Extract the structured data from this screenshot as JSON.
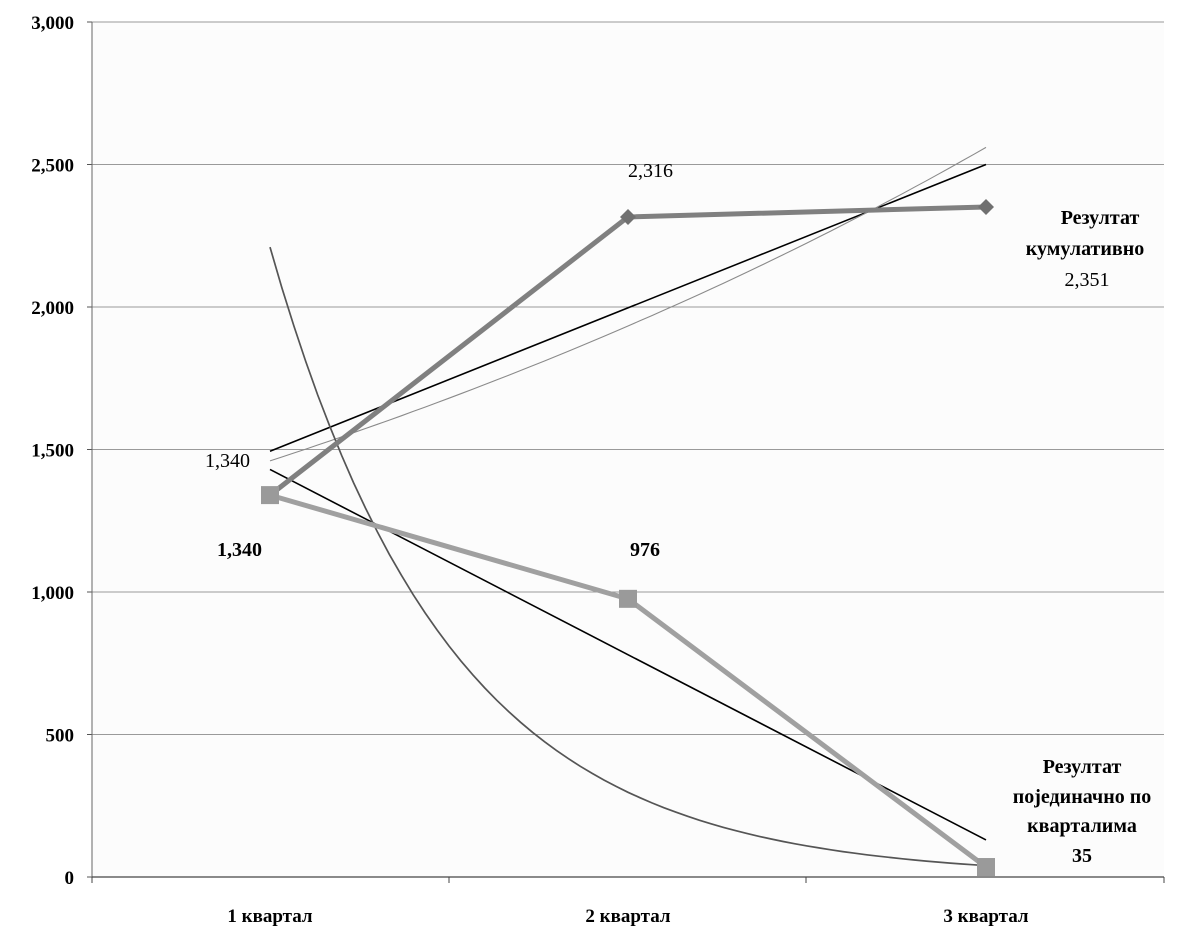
{
  "chart_data": {
    "type": "line",
    "categories": [
      "1 квартал",
      "2 квартал",
      "3 квартал"
    ],
    "ylim": [
      0,
      3000
    ],
    "yticks": [
      0,
      500,
      1000,
      1500,
      2000,
      2500,
      3000
    ],
    "ytick_labels": [
      "0",
      "500",
      "1,000",
      "1,500",
      "2,000",
      "2,500",
      "3,000"
    ],
    "grid": true,
    "series": [
      {
        "name_lines": [
          "Резултат",
          "кумулативно"
        ],
        "values": [
          1340,
          2316,
          2351
        ],
        "data_labels": [
          "1,340",
          "2,316",
          "2,351"
        ],
        "color": "#808080",
        "marker": "diamond"
      },
      {
        "name_lines": [
          "Резултат",
          "појединачно по",
          "кварталима"
        ],
        "values": [
          1340,
          976,
          35
        ],
        "data_labels": [
          "1,340",
          "976",
          "35"
        ],
        "color": "#a0a0a0",
        "marker": "square"
      }
    ],
    "trendlines": [
      {
        "series": 0,
        "kind": "linear",
        "values": [
          1494,
          2500
        ]
      },
      {
        "series": 0,
        "kind": "exponential",
        "values": [
          1460,
          2560
        ]
      },
      {
        "series": 1,
        "kind": "linear",
        "values": [
          1430,
          130
        ]
      },
      {
        "series": 1,
        "kind": "exponential",
        "values": [
          2210,
          40
        ]
      }
    ]
  }
}
